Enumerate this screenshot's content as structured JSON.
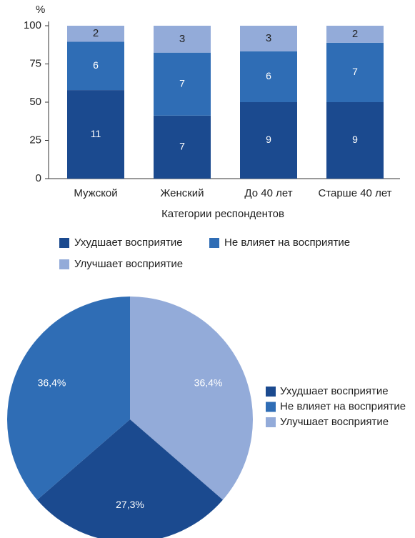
{
  "chart_data": [
    {
      "type": "bar",
      "stacked": true,
      "y_unit": "%",
      "x_label": "Категории респондентов",
      "categories": [
        "Мужской",
        "Женский",
        "До 40 лет",
        "Старше 40 лет"
      ],
      "series": [
        {
          "name": "Ухудшает восприятие",
          "color": "#1b4a8f",
          "values": [
            57.9,
            41.2,
            50,
            50
          ],
          "counts": [
            11,
            7,
            9,
            9
          ]
        },
        {
          "name": "Не влияет на восприятие",
          "color": "#2f6db5",
          "values": [
            31.6,
            41.2,
            33.3,
            38.9
          ],
          "counts": [
            6,
            7,
            6,
            7
          ]
        },
        {
          "name": "Улучшает восприятие",
          "color": "#93abd9",
          "values": [
            10.5,
            17.6,
            16.7,
            11.1
          ],
          "counts": [
            2,
            3,
            3,
            2
          ]
        }
      ],
      "ylim": [
        0,
        100
      ],
      "yticks": [
        0,
        25,
        50,
        75,
        100
      ]
    },
    {
      "type": "pie",
      "categories": [
        "Ухудшает восприятие",
        "Не влияет на восприятие",
        "Улучшает восприятие"
      ],
      "colors": [
        "#1b4a8f",
        "#2f6db5",
        "#93abd9"
      ],
      "values": [
        27.3,
        36.4,
        36.4
      ],
      "value_labels": [
        "27,3%",
        "36,4%",
        "36,4%"
      ]
    }
  ]
}
